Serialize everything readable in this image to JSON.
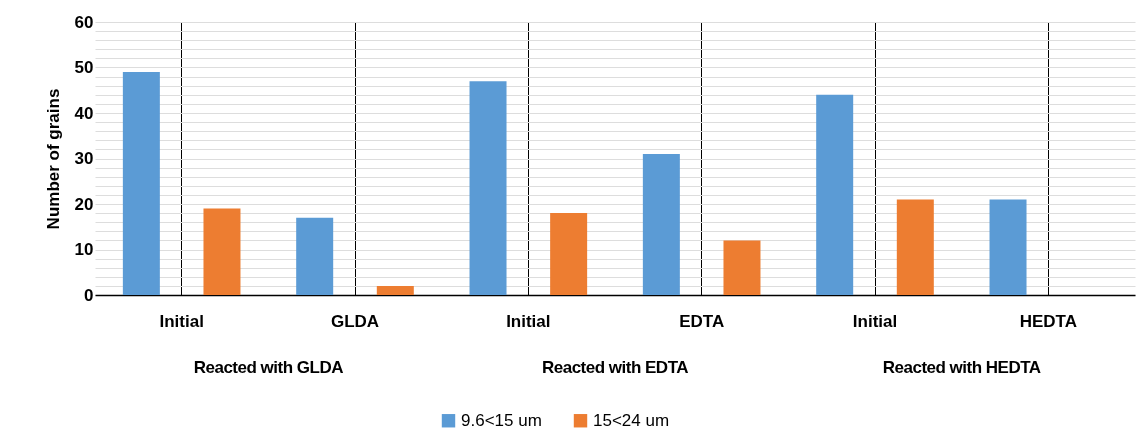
{
  "chart_data": {
    "type": "bar",
    "ylabel": "Number of grains",
    "categories": [
      "Initial",
      "GLDA",
      "Initial",
      "EDTA",
      "Initial",
      "HEDTA"
    ],
    "series": [
      {
        "name": "9.6<15 um",
        "color": "#5b9bd5",
        "values": [
          49,
          17,
          47,
          31,
          44,
          21
        ]
      },
      {
        "name": "15<24 um",
        "color": "#ed7d31",
        "values": [
          19,
          2,
          18,
          12,
          21,
          0
        ]
      }
    ],
    "annotations": [
      "Reacted with GLDA",
      "Reacted with EDTA",
      "Reacted with HEDTA"
    ],
    "ylim": [
      0,
      60
    ],
    "yticks": [
      0,
      {
        "value": 2,
        "label": null
      },
      {
        "value": 4,
        "label": null
      },
      {
        "value": 6,
        "label": null
      },
      {
        "value": 8,
        "label": null
      },
      10,
      {
        "value": 12,
        "label": null
      },
      {
        "value": 14,
        "label": null
      },
      {
        "value": 16,
        "label": null
      },
      {
        "value": 18,
        "label": null
      },
      20,
      {
        "value": 22,
        "label": null
      },
      {
        "value": 24,
        "label": null
      },
      {
        "value": 26,
        "label": null
      },
      {
        "value": 28,
        "label": null
      },
      30,
      {
        "value": 32,
        "label": null
      },
      {
        "value": 34,
        "label": null
      },
      {
        "value": 36,
        "label": null
      },
      {
        "value": 38,
        "label": null
      },
      40,
      {
        "value": 42,
        "label": null
      },
      {
        "value": 44,
        "label": null
      },
      {
        "value": 46,
        "label": null
      },
      {
        "value": 48,
        "label": null
      },
      50,
      {
        "value": 52,
        "label": null
      },
      {
        "value": 54,
        "label": null
      },
      {
        "value": 56,
        "label": null
      },
      {
        "value": 58,
        "label": null
      },
      60
    ],
    "grid": true,
    "legend": "bottom"
  }
}
